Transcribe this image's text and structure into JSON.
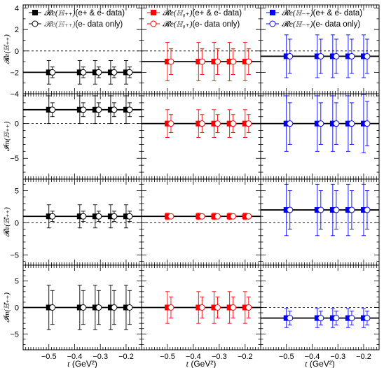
{
  "chart_data": {
    "type": "scatter",
    "layout": "4 rows x 3 columns of panels with shared x-axis",
    "grid": false,
    "x": [
      -0.5,
      -0.38,
      -0.32,
      -0.26,
      -0.2
    ],
    "xlim": [
      -0.6,
      -0.14
    ],
    "xticks": [
      -0.5,
      -0.4,
      -0.3,
      -0.2
    ],
    "xtick_labels": [
      "-0.5",
      "-0.4",
      "-0.3",
      "-0.2"
    ],
    "xlabel_pre": "t",
    "xlabel_post": " (GeV²)",
    "reference_line_y": 0,
    "rows": [
      {
        "ylabel": "𝓡e(ℍ₊₊)",
        "ylim": [
          -4,
          4.3
        ],
        "yticks": [
          -4,
          -2,
          0,
          2,
          4
        ]
      },
      {
        "ylabel": "𝓘m(ℍ₊₊)",
        "ylim": [
          -8,
          4.3
        ],
        "yticks": [
          -5,
          0
        ]
      },
      {
        "ylabel": "𝓡e(ℍ̃₊₊)",
        "ylim": [
          -6.6,
          6.8
        ],
        "yticks": [
          -5,
          0,
          5
        ]
      },
      {
        "ylabel": "𝓘m(ℍ̃₊₊)",
        "ylim": [
          -8,
          8
        ],
        "yticks": [
          -5,
          0,
          5
        ]
      }
    ],
    "columns": [
      {
        "color": "#000000",
        "legend": [
          {
            "label": "𝓡e(ℍ₊₊)",
            "suffix": "(e+ & e- data)",
            "marker": "square-filled"
          },
          {
            "label": "𝓡e(ℍ₊₊)",
            "suffix": "(e- data only)",
            "marker": "circle-open"
          }
        ]
      },
      {
        "color": "#ff0000",
        "legend": [
          {
            "label": "𝓡e(ℍ₀₊)",
            "suffix": "(e+ & e- data)",
            "marker": "square-filled"
          },
          {
            "label": "𝓡e(ℍ₀₊)",
            "suffix": "(e- data only)",
            "marker": "circle-open"
          }
        ]
      },
      {
        "color": "#0000ff",
        "legend": [
          {
            "label": "𝓡e(ℍ₋₊)",
            "suffix": "(e+ & e- data)",
            "marker": "square-filled"
          },
          {
            "label": "𝓡e(ℍ₋₊)",
            "suffix": "(e- data only)",
            "marker": "circle-open"
          }
        ]
      }
    ],
    "panels": [
      {
        "row": 0,
        "col": 0,
        "line_y": -2,
        "series": [
          {
            "marker": "square-filled",
            "y": [
              -2,
              -2,
              -2,
              -2,
              -2
            ],
            "err": [
              1.1,
              1.1,
              1.1,
              1.1,
              1.1
            ]
          },
          {
            "marker": "circle-open",
            "y": [
              -2,
              -2,
              -2,
              -2,
              -2
            ],
            "err": [
              0.5,
              0.5,
              0.5,
              0.5,
              0.5
            ]
          }
        ]
      },
      {
        "row": 0,
        "col": 1,
        "line_y": -1,
        "series": [
          {
            "marker": "square-filled",
            "y": [
              -1,
              -1,
              -1,
              -1,
              -1
            ],
            "err": [
              1.8,
              1.8,
              1.8,
              1.8,
              1.8
            ]
          },
          {
            "marker": "circle-open",
            "y": [
              -1,
              -1,
              -1,
              -1,
              -1
            ],
            "err": [
              1.2,
              1.2,
              1.2,
              1.2,
              1.2
            ]
          }
        ]
      },
      {
        "row": 0,
        "col": 2,
        "line_y": -0.5,
        "series": [
          {
            "marker": "square-filled",
            "y": [
              -0.5,
              -0.5,
              -0.5,
              -0.5,
              -0.5
            ],
            "err": [
              2.0,
              2.0,
              2.0,
              2.0,
              2.0
            ]
          },
          {
            "marker": "circle-open",
            "y": [
              -0.5,
              -0.5,
              -0.5,
              -0.5,
              -0.5
            ],
            "err": [
              1.6,
              1.6,
              1.6,
              1.6,
              1.6
            ]
          }
        ]
      },
      {
        "row": 1,
        "col": 0,
        "line_y": 2,
        "series": [
          {
            "marker": "square-filled",
            "y": [
              2,
              2,
              2,
              2,
              2
            ],
            "err": [
              2.0,
              2.0,
              2.0,
              2.0,
              2.0
            ]
          },
          {
            "marker": "circle-open",
            "y": [
              2,
              2,
              2,
              2,
              2
            ],
            "err": [
              1.0,
              1.0,
              1.0,
              1.0,
              1.0
            ]
          }
        ]
      },
      {
        "row": 1,
        "col": 1,
        "line_y": 0,
        "series": [
          {
            "marker": "square-filled",
            "y": [
              0,
              0,
              0,
              0,
              0
            ],
            "err": [
              2.0,
              2.0,
              2.0,
              2.0,
              2.0
            ]
          },
          {
            "marker": "circle-open",
            "y": [
              0,
              0,
              0,
              0,
              0
            ],
            "err": [
              1.3,
              1.3,
              1.3,
              1.3,
              1.3
            ]
          }
        ]
      },
      {
        "row": 1,
        "col": 2,
        "line_y": 0,
        "series": [
          {
            "marker": "square-filled",
            "y": [
              0,
              0,
              0,
              0,
              0
            ],
            "err": [
              4.0,
              4.0,
              4.0,
              4.0,
              4.2
            ]
          },
          {
            "marker": "circle-open",
            "y": [
              0,
              0,
              0,
              0,
              0
            ],
            "err": [
              3.0,
              3.0,
              3.0,
              3.0,
              3.2
            ]
          }
        ]
      },
      {
        "row": 2,
        "col": 0,
        "line_y": 1,
        "series": [
          {
            "marker": "square-filled",
            "y": [
              1,
              1,
              1,
              1,
              1
            ],
            "err": [
              1.8,
              1.8,
              1.8,
              1.8,
              1.8
            ]
          },
          {
            "marker": "circle-open",
            "y": [
              1,
              1,
              1,
              1,
              1
            ],
            "err": [
              0.8,
              0.8,
              0.8,
              0.8,
              0.8
            ]
          }
        ]
      },
      {
        "row": 2,
        "col": 1,
        "line_y": 1,
        "series": [
          {
            "marker": "square-filled",
            "y": [
              1,
              1,
              1,
              1,
              1
            ],
            "err": [
              0.5,
              0.5,
              0.5,
              0.5,
              0.5
            ]
          },
          {
            "marker": "circle-open",
            "y": [
              1,
              1,
              1,
              1,
              1
            ],
            "err": [
              0.3,
              0.3,
              0.3,
              0.3,
              0.3
            ]
          }
        ]
      },
      {
        "row": 2,
        "col": 2,
        "line_y": 2,
        "series": [
          {
            "marker": "square-filled",
            "y": [
              2,
              2,
              2,
              2,
              2
            ],
            "err": [
              4.0,
              4.0,
              4.0,
              4.0,
              4.0
            ]
          },
          {
            "marker": "circle-open",
            "y": [
              2,
              2,
              2,
              2,
              2
            ],
            "err": [
              3.0,
              3.0,
              3.0,
              3.0,
              3.0
            ]
          }
        ]
      },
      {
        "row": 3,
        "col": 0,
        "line_y": 0,
        "series": [
          {
            "marker": "square-filled",
            "y": [
              0,
              0,
              0,
              0,
              0
            ],
            "err": [
              4.2,
              4.2,
              4.2,
              4.2,
              4.2
            ]
          },
          {
            "marker": "circle-open",
            "y": [
              0,
              0,
              0,
              0,
              0
            ],
            "err": [
              3.2,
              3.2,
              3.2,
              3.2,
              3.2
            ]
          }
        ]
      },
      {
        "row": 3,
        "col": 1,
        "line_y": 0,
        "series": [
          {
            "marker": "square-filled",
            "y": [
              0,
              0,
              0,
              0,
              0
            ],
            "err": [
              3.0,
              3.0,
              3.0,
              3.0,
              3.0
            ]
          },
          {
            "marker": "circle-open",
            "y": [
              0,
              0,
              0,
              0,
              0
            ],
            "err": [
              2.0,
              2.0,
              2.0,
              2.0,
              2.0
            ]
          }
        ]
      },
      {
        "row": 3,
        "col": 2,
        "line_y": -2,
        "series": [
          {
            "marker": "square-filled",
            "y": [
              -2,
              -2,
              -2,
              -2,
              -2
            ],
            "err": [
              1.8,
              1.8,
              1.8,
              1.8,
              1.8
            ]
          },
          {
            "marker": "circle-open",
            "y": [
              -2,
              -2,
              -2,
              -2,
              -2
            ],
            "err": [
              1.3,
              1.3,
              1.3,
              1.3,
              1.3
            ]
          }
        ]
      }
    ]
  }
}
